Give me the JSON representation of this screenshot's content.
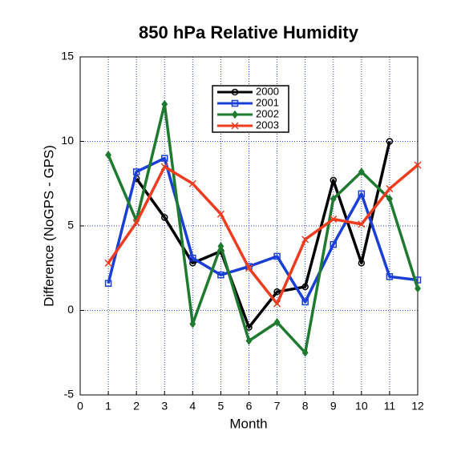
{
  "chart_data": {
    "type": "line",
    "title": "850 hPa Relative Humidity",
    "xlabel": "Month",
    "ylabel": "Difference (NoGPS - GPS)",
    "x": [
      1,
      2,
      3,
      4,
      5,
      6,
      7,
      8,
      9,
      10,
      11,
      12
    ],
    "series": [
      {
        "name": "2000",
        "color": "#000000",
        "marker": "circle",
        "values": [
          null,
          7.8,
          5.5,
          2.8,
          3.5,
          -1.0,
          1.1,
          1.4,
          7.7,
          2.8,
          10.0,
          null
        ]
      },
      {
        "name": "2001",
        "color": "#1a3fd6",
        "marker": "square",
        "values": [
          1.6,
          8.2,
          9.0,
          3.1,
          2.1,
          2.6,
          3.2,
          0.5,
          3.9,
          6.9,
          2.0,
          1.8
        ]
      },
      {
        "name": "2002",
        "color": "#1e7a2e",
        "marker": "diamond",
        "values": [
          9.2,
          5.3,
          12.2,
          -0.8,
          3.8,
          -1.8,
          -0.7,
          -2.5,
          6.6,
          8.2,
          6.6,
          1.3
        ]
      },
      {
        "name": "2003",
        "color": "#f03c1e",
        "marker": "x",
        "values": [
          2.8,
          5.2,
          8.5,
          7.5,
          5.7,
          2.5,
          0.4,
          4.2,
          5.4,
          5.1,
          7.2,
          8.6
        ]
      }
    ],
    "xlim": [
      0,
      12
    ],
    "xticks": [
      0,
      1,
      2,
      3,
      4,
      5,
      6,
      7,
      8,
      9,
      10,
      11,
      12
    ],
    "ylim": [
      -5,
      15
    ],
    "yticks": [
      -5,
      0,
      5,
      10,
      15
    ],
    "grid": true,
    "legend": "upper center"
  }
}
